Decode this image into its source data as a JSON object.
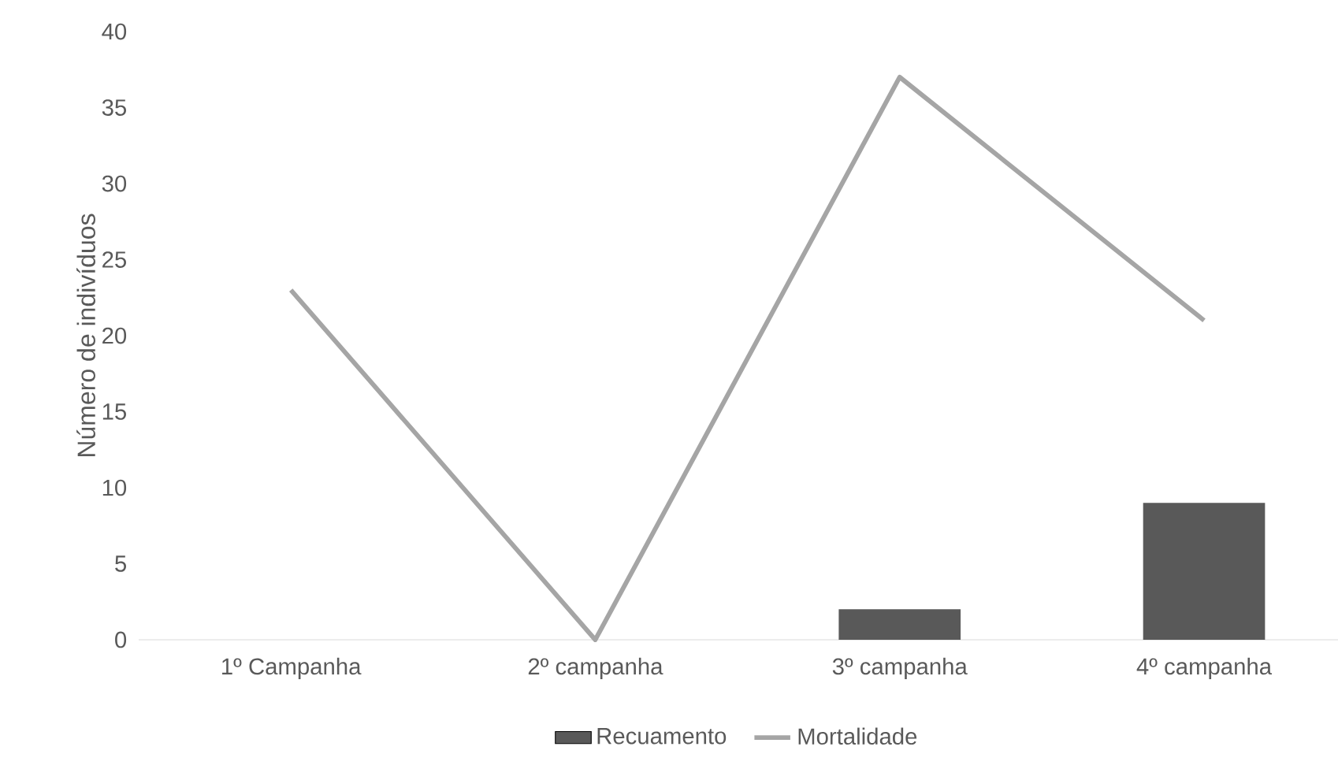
{
  "chart_data": {
    "type": "bar",
    "ylabel": "Número de indivíduos",
    "categories": [
      "1º Campanha",
      "2º campanha",
      "3º campanha",
      "4º campanha"
    ],
    "series": [
      {
        "name": "Recuamento",
        "color": "#595959",
        "values": [
          0,
          0,
          2,
          9
        ]
      },
      {
        "name": "Mortalidade",
        "type": "line",
        "color": "#a5a5a5",
        "values": [
          23,
          0,
          37,
          21
        ]
      }
    ],
    "ylim": [
      0,
      40
    ],
    "yticks": [
      0,
      5,
      10,
      15,
      20,
      25,
      30,
      35,
      40
    ],
    "legend": "bottom",
    "marker": "none"
  }
}
